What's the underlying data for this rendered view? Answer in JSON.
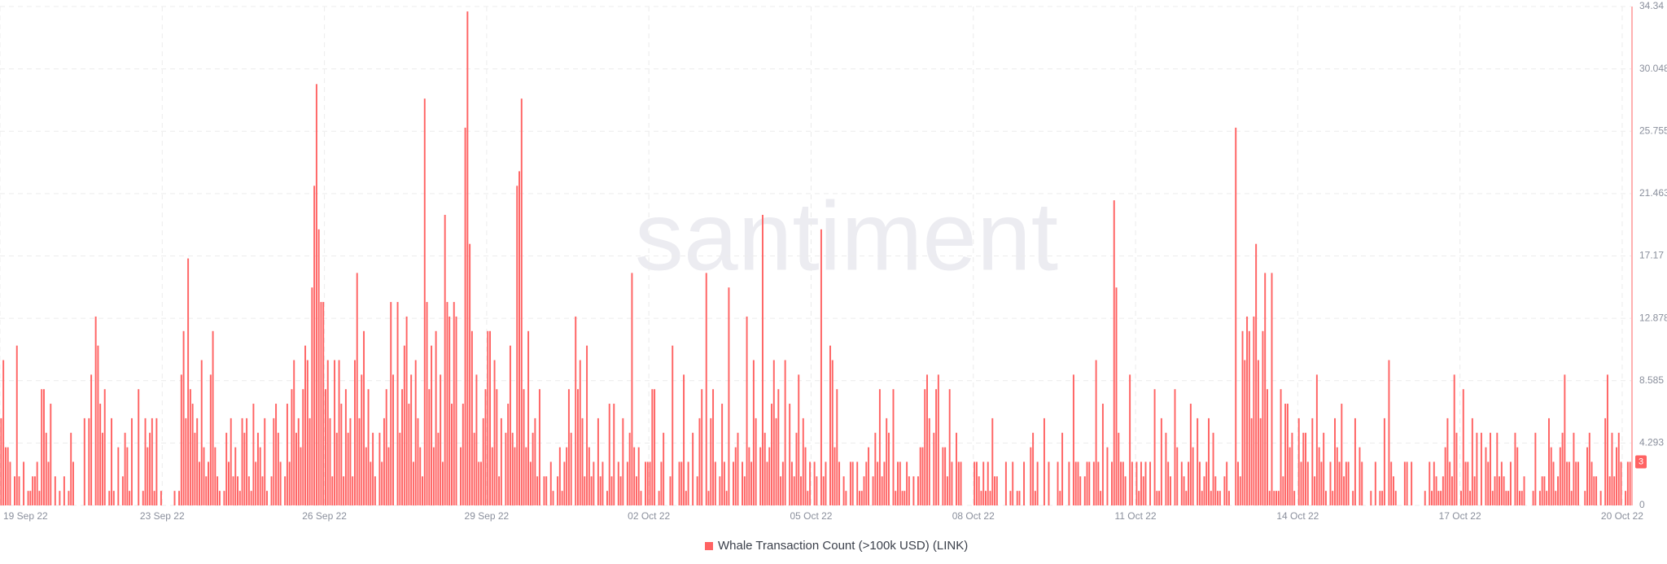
{
  "chart_data": {
    "type": "bar",
    "watermark": "santiment",
    "series": [
      {
        "name": "Whale Transaction Count (>100k USD) (LINK)",
        "color": "#ff6363",
        "values": [
          6,
          10,
          4,
          4,
          3,
          0,
          2,
          11,
          2,
          0,
          3,
          0,
          1,
          1,
          2,
          2,
          3,
          1,
          8,
          8,
          5,
          3,
          7,
          0,
          2,
          0,
          1,
          0,
          2,
          0,
          1,
          5,
          3,
          0,
          0,
          0,
          0,
          6,
          0,
          6,
          9,
          0,
          13,
          11,
          7,
          5,
          8,
          0,
          1,
          6,
          1,
          0,
          4,
          0,
          2,
          5,
          4,
          1,
          6,
          0,
          0,
          8,
          0,
          1,
          6,
          4,
          5,
          6,
          1,
          6,
          0,
          1,
          0,
          0,
          0,
          0,
          0,
          1,
          0,
          1,
          9,
          12,
          6,
          17,
          8,
          7,
          5,
          6,
          3,
          10,
          4,
          2,
          3,
          9,
          12,
          4,
          2,
          1,
          0,
          1,
          5,
          3,
          6,
          2,
          4,
          2,
          1,
          6,
          5,
          6,
          2,
          1,
          7,
          3,
          5,
          4,
          2,
          6,
          1,
          0,
          2,
          6,
          7,
          5,
          3,
          0,
          2,
          7,
          3,
          8,
          10,
          5,
          6,
          4,
          8,
          11,
          10,
          6,
          15,
          22,
          29,
          19,
          14,
          14,
          8,
          10,
          6,
          2,
          10,
          5,
          10,
          7,
          2,
          8,
          5,
          6,
          2,
          10,
          16,
          6,
          9,
          12,
          4,
          8,
          3,
          5,
          2,
          0,
          5,
          3,
          6,
          8,
          4,
          14,
          9,
          0,
          14,
          5,
          8,
          11,
          13,
          7,
          9,
          3,
          10,
          6,
          4,
          2,
          28,
          14,
          8,
          11,
          4,
          12,
          5,
          9,
          3,
          20,
          14,
          13,
          7,
          14,
          13,
          0,
          4,
          7,
          26,
          34,
          18,
          12,
          5,
          9,
          3,
          3,
          6,
          8,
          12,
          12,
          4,
          10,
          8,
          2,
          6,
          0,
          5,
          7,
          11,
          5,
          4,
          22,
          23,
          28,
          8,
          4,
          12,
          3,
          5,
          6,
          2,
          8,
          0,
          2,
          2,
          0,
          3,
          1,
          0,
          2,
          4,
          1,
          3,
          4,
          8,
          5,
          0,
          13,
          8,
          10,
          6,
          2,
          11,
          4,
          2,
          3,
          0,
          6,
          2,
          3,
          0,
          1,
          7,
          2,
          7,
          0,
          3,
          2,
          6,
          0,
          3,
          5,
          16,
          4,
          2,
          4,
          1,
          0,
          3,
          3,
          3,
          8,
          8,
          0,
          1,
          3,
          5,
          0,
          0,
          2,
          11,
          0,
          0,
          3,
          3,
          9,
          1,
          3,
          0,
          5,
          0,
          2,
          6,
          8,
          0,
          16,
          1,
          6,
          8,
          3,
          0,
          2,
          7,
          3,
          1,
          15,
          0,
          3,
          4,
          5,
          0,
          3,
          2,
          13,
          4,
          3,
          10,
          6,
          0,
          4,
          20,
          5,
          3,
          4,
          7,
          10,
          6,
          8,
          2,
          3,
          10,
          0,
          7,
          3,
          2,
          5,
          9,
          2,
          6,
          4,
          1,
          3,
          0,
          3,
          2,
          0,
          19,
          2,
          3,
          0,
          11,
          10,
          4,
          8,
          3,
          0,
          2,
          1,
          0,
          3,
          3,
          0,
          3,
          1,
          1,
          2,
          3,
          4,
          0,
          2,
          5,
          3,
          8,
          2,
          3,
          6,
          5,
          0,
          8,
          1,
          3,
          3,
          1,
          1,
          3,
          2,
          0,
          2,
          0,
          2,
          4,
          4,
          8,
          9,
          6,
          0,
          5,
          8,
          9,
          0,
          4,
          4,
          2,
          8,
          3,
          0,
          5,
          3,
          3,
          0,
          0,
          0,
          0,
          0,
          3,
          3,
          2,
          1,
          3,
          1,
          3,
          1,
          6,
          2,
          2,
          0,
          0,
          0,
          3,
          0,
          1,
          3,
          0,
          1,
          1,
          0,
          3,
          0,
          0,
          4,
          5,
          1,
          3,
          0,
          0,
          6,
          0,
          3,
          0,
          0,
          0,
          3,
          1,
          5,
          0,
          0,
          3,
          0,
          9,
          3,
          3,
          2,
          0,
          2,
          3,
          3,
          0,
          3,
          10,
          3,
          1,
          7,
          0,
          4,
          0,
          3,
          21,
          15,
          5,
          3,
          3,
          2,
          0,
          9,
          3,
          0,
          3,
          1,
          3,
          2,
          3,
          0,
          3,
          0,
          8,
          1,
          1,
          6,
          0,
          5,
          3,
          2,
          0,
          8,
          4,
          0,
          3,
          2,
          1,
          3,
          7,
          4,
          0,
          6,
          3,
          1,
          2,
          3,
          6,
          1,
          5,
          2,
          1,
          1,
          0,
          2,
          3,
          1,
          0,
          0,
          26,
          3,
          2,
          12,
          10,
          13,
          12,
          6,
          13,
          18,
          10,
          6,
          12,
          16,
          8,
          1,
          16,
          1,
          1,
          1,
          8,
          2,
          7,
          7,
          4,
          5,
          1,
          0,
          6,
          3,
          5,
          5,
          3,
          0,
          6,
          2,
          9,
          4,
          3,
          5,
          1,
          0,
          3,
          1,
          6,
          4,
          3,
          7,
          2,
          3,
          3,
          0,
          1,
          6,
          0,
          4,
          3,
          0,
          0,
          0,
          1,
          0,
          3,
          0,
          1,
          1,
          6,
          0,
          10,
          3,
          2,
          1,
          0,
          0,
          0,
          3,
          3,
          0,
          3,
          0,
          0,
          0,
          0,
          0,
          1,
          0,
          3,
          1,
          3,
          2,
          1,
          1,
          2,
          4,
          6,
          3,
          2,
          9,
          5,
          0,
          1,
          8,
          3,
          3,
          1,
          6,
          2,
          5,
          0,
          5,
          0,
          4,
          3,
          5,
          1,
          2,
          5,
          2,
          3,
          2,
          1,
          1,
          3,
          0,
          5,
          4,
          1,
          1,
          2,
          0,
          0,
          0,
          1,
          5,
          0,
          1,
          2,
          2,
          1,
          6,
          4,
          3,
          1,
          2,
          4,
          5,
          9,
          3,
          3,
          1,
          5,
          3,
          3,
          0,
          0,
          1,
          4,
          5,
          3,
          2,
          2,
          0,
          1,
          0,
          6,
          9,
          2,
          5,
          2,
          4,
          5,
          3,
          0,
          1,
          3,
          3
        ]
      }
    ],
    "xlim": [
      0,
      724
    ],
    "xticks": [
      {
        "value": 0,
        "label": "19 Sep 22"
      },
      {
        "value": 72,
        "label": "23 Sep 22"
      },
      {
        "value": 144,
        "label": "26 Sep 22"
      },
      {
        "value": 216,
        "label": "29 Sep 22"
      },
      {
        "value": 288,
        "label": "02 Oct 22"
      },
      {
        "value": 360,
        "label": "05 Oct 22"
      },
      {
        "value": 432,
        "label": "08 Oct 22"
      },
      {
        "value": 504,
        "label": "11 Oct 22"
      },
      {
        "value": 576,
        "label": "14 Oct 22"
      },
      {
        "value": 648,
        "label": "17 Oct 22"
      },
      {
        "value": 720,
        "label": "20 Oct 22"
      }
    ],
    "ylim": [
      0,
      34.34
    ],
    "yticks": [
      0,
      4.293,
      8.585,
      12.878,
      17.17,
      21.463,
      25.755,
      30.048,
      34.34
    ],
    "grid": true,
    "legend": "bottom"
  }
}
